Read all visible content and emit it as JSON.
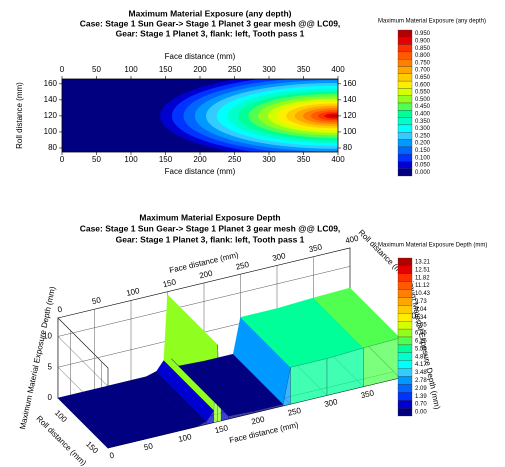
{
  "chart_data": [
    {
      "type": "contour",
      "title": "Maximum Material Exposure (any depth)",
      "subtitle": [
        "Case: Stage 1 Sun Gear-> Stage 1 Planet 3 gear mesh @@ LC09,",
        "Gear: Stage 1 Planet 3, flank: left, Tooth pass 1"
      ],
      "xlabel": "Face distance (mm)",
      "ylabel": "Roll distance (mm)",
      "xlim": [
        0,
        400
      ],
      "xticks": [
        0,
        50,
        100,
        150,
        200,
        250,
        300,
        350,
        400
      ],
      "ylim": [
        75,
        166
      ],
      "yticks": [
        80,
        100,
        120,
        140,
        160
      ],
      "peak_x": 395,
      "peak_y": 120,
      "legend_title": "Maximum Material Exposure (any depth)",
      "levels": [
        {
          "value": 0.95,
          "label": "0.950"
        },
        {
          "value": 0.9,
          "label": "0.900"
        },
        {
          "value": 0.85,
          "label": "0.850"
        },
        {
          "value": 0.8,
          "label": "0.800"
        },
        {
          "value": 0.75,
          "label": "0.750"
        },
        {
          "value": 0.7,
          "label": "0.700"
        },
        {
          "value": 0.65,
          "label": "0.650"
        },
        {
          "value": 0.6,
          "label": "0.600"
        },
        {
          "value": 0.55,
          "label": "0.550"
        },
        {
          "value": 0.5,
          "label": "0.500"
        },
        {
          "value": 0.45,
          "label": "0.450"
        },
        {
          "value": 0.4,
          "label": "0.400"
        },
        {
          "value": 0.35,
          "label": "0.350"
        },
        {
          "value": 0.3,
          "label": "0.300"
        },
        {
          "value": 0.25,
          "label": "0.250"
        },
        {
          "value": 0.2,
          "label": "0.200"
        },
        {
          "value": 0.15,
          "label": "0.150"
        },
        {
          "value": 0.1,
          "label": "0.100"
        },
        {
          "value": 0.05,
          "label": "0.050"
        },
        {
          "value": 0,
          "label": "0.000"
        }
      ],
      "colors": [
        "#b00000",
        "#e60000",
        "#ff3000",
        "#ff5a00",
        "#ff8000",
        "#ffa600",
        "#ffcc00",
        "#ffee00",
        "#d4ff00",
        "#90ff20",
        "#50ff50",
        "#00ff99",
        "#00ffcc",
        "#00ffff",
        "#33ccff",
        "#0099ff",
        "#0066ff",
        "#0033ff",
        "#0000d0",
        "#000080"
      ]
    },
    {
      "type": "surface3d",
      "title": "Maximum Material Exposure Depth",
      "subtitle": [
        "Case: Stage 1 Sun Gear-> Stage 1 Planet 3 gear mesh @@ LC09,",
        "Gear: Stage 1 Planet 3, flank: left, Tooth pass 1"
      ],
      "xlabel": "Face distance (mm)",
      "ylabel": "Roll distance (mm)",
      "zlabel": "Maximum Material Exposure Depth (mm)",
      "xlim": [
        0,
        400
      ],
      "xticks": [
        0,
        50,
        100,
        150,
        200,
        250,
        300,
        350,
        400
      ],
      "ylim": [
        80,
        160
      ],
      "yticks": [
        100,
        150
      ],
      "zlim": [
        0,
        13
      ],
      "zticks": [
        0,
        5,
        10
      ],
      "x": [
        0,
        120,
        135,
        145,
        150,
        155,
        165,
        200,
        240,
        250,
        300,
        350,
        400
      ],
      "values": [
        0,
        0,
        0.5,
        2,
        12.5,
        2,
        0.5,
        0.3,
        0.3,
        6,
        6,
        6.3,
        6.5
      ],
      "legend_title": "Maximum Material Exposure Depth (mm)",
      "levels": [
        13.21,
        12.51,
        11.82,
        11.12,
        10.43,
        9.73,
        9.04,
        8.34,
        7.65,
        6.95,
        6.26,
        5.56,
        4.87,
        4.17,
        3.48,
        2.78,
        2.09,
        1.39,
        {
          "value": 0.7,
          "label": "0.70"
        },
        {
          "value": 0,
          "label": "0.00"
        }
      ],
      "colors": [
        "#b00000",
        "#e60000",
        "#ff3000",
        "#ff5a00",
        "#ff8000",
        "#ffa600",
        "#ffcc00",
        "#ffee00",
        "#d4ff00",
        "#90ff20",
        "#50ff50",
        "#00ff99",
        "#00ffcc",
        "#00ffff",
        "#33ccff",
        "#0099ff",
        "#0066ff",
        "#0033ff",
        "#0000d0",
        "#000080"
      ]
    }
  ]
}
